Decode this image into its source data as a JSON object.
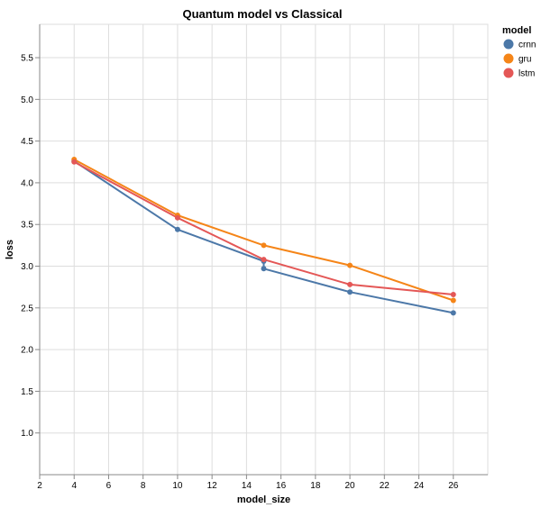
{
  "chart_data": {
    "type": "line",
    "title": "Quantum model vs Classical",
    "xlabel": "model_size",
    "ylabel": "loss",
    "xlim": [
      2,
      28
    ],
    "ylim": [
      0.5,
      5.9
    ],
    "x_ticks": [
      2,
      4,
      6,
      8,
      10,
      12,
      14,
      16,
      18,
      20,
      22,
      24,
      26
    ],
    "y_ticks": [
      1.0,
      1.5,
      2.0,
      2.5,
      3.0,
      3.5,
      4.0,
      4.5,
      5.0,
      5.5
    ],
    "grid": true,
    "legend": {
      "title": "model",
      "placement": "right"
    },
    "series": [
      {
        "name": "crnn",
        "color": "#4c78a8",
        "points": [
          [
            4,
            4.26
          ],
          [
            10,
            3.44
          ],
          [
            15,
            3.06
          ],
          [
            15,
            2.97
          ],
          [
            20,
            2.69
          ],
          [
            26,
            2.44
          ]
        ]
      },
      {
        "name": "gru",
        "color": "#f58518",
        "points": [
          [
            4,
            4.28
          ],
          [
            10,
            3.61
          ],
          [
            15,
            3.25
          ],
          [
            20,
            3.01
          ],
          [
            26,
            2.59
          ]
        ]
      },
      {
        "name": "lstm",
        "color": "#e45756",
        "points": [
          [
            4,
            4.25
          ],
          [
            10,
            3.58
          ],
          [
            15,
            3.08
          ],
          [
            20,
            2.78
          ],
          [
            26,
            2.66
          ]
        ]
      }
    ]
  }
}
